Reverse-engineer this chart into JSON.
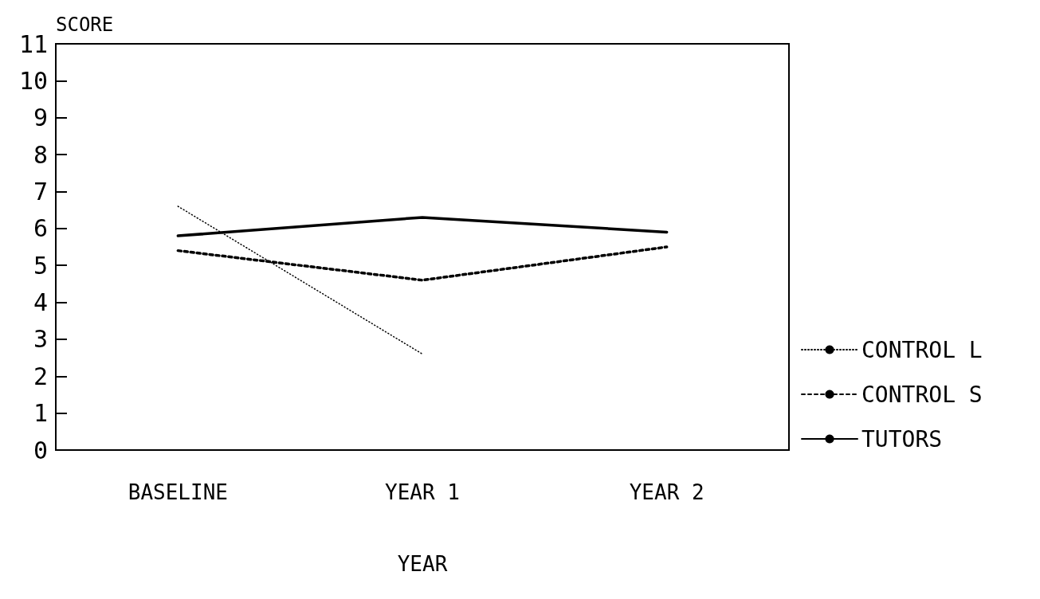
{
  "chart_data": {
    "type": "line",
    "xlabel": "YEAR",
    "ylabel": "SCORE",
    "categories": [
      "BASELINE",
      "YEAR 1",
      "YEAR 2"
    ],
    "series": [
      {
        "name": "CONTROL L",
        "color": "#000000",
        "line_style": "dotted",
        "values": [
          6.6,
          2.6,
          null
        ]
      },
      {
        "name": "CONTROL S",
        "color": "#000000",
        "line_style": "dashed",
        "values": [
          5.4,
          4.6,
          5.5
        ]
      },
      {
        "name": "TUTORS",
        "color": "#000000",
        "line_style": "solid",
        "values": [
          5.8,
          6.3,
          5.9
        ]
      }
    ],
    "ylim": [
      0,
      11
    ],
    "yticks": [
      0,
      1,
      2,
      3,
      4,
      5,
      6,
      7,
      8,
      9,
      10,
      11
    ],
    "grid": false,
    "legend": "right",
    "marker": "none"
  }
}
